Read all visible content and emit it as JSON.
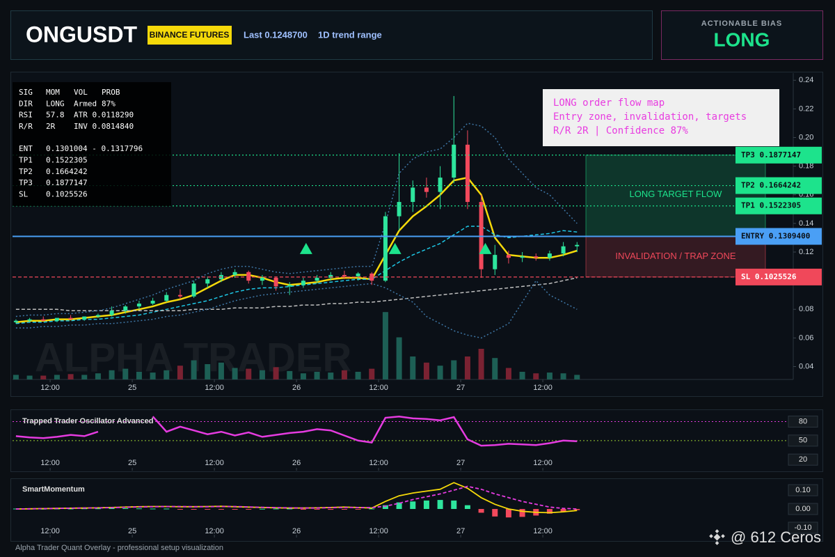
{
  "header": {
    "symbol": "ONGUSDT",
    "exchange": "BINANCE FUTURES",
    "last": "Last 0.1248700",
    "range": "1D trend range"
  },
  "bias": {
    "label": "ACTIONABLE BIAS",
    "value": "LONG"
  },
  "info": {
    "rows": [
      [
        "SIG",
        "MOM",
        "VOL",
        "PROB"
      ],
      [
        "DIR",
        "LONG",
        "Armed",
        "87%"
      ],
      [
        "RSI",
        "57.8",
        "ATR 0.0118290"
      ],
      [
        "R/R",
        "2R",
        "INV 0.0814840"
      ],
      [
        "ENT",
        "0.1301004 - 0.1317796"
      ],
      [
        "TP1",
        "0.1522305"
      ],
      [
        "TP2",
        "0.1664242"
      ],
      [
        "TP3",
        "0.1877147"
      ],
      [
        "SL",
        "0.1025526"
      ]
    ]
  },
  "callout": [
    "LONG order flow map",
    "Entry zone, invalidation, targets",
    "R/R 2R | Confidence 87%"
  ],
  "watermark": "ALPHA TRADER",
  "footer": "Alpha Trader Quant Overlay - professional setup visualization",
  "credit": "@ 612 Ceros",
  "chart_data": [
    {
      "type": "candlestick",
      "x": [
        1,
        3,
        5,
        7,
        9,
        11,
        13,
        15,
        17,
        19,
        21,
        23,
        25,
        27,
        29,
        31,
        33,
        35,
        37,
        39,
        41,
        43,
        45,
        47,
        49,
        51,
        53,
        55,
        57,
        59,
        61,
        63,
        65,
        67,
        69,
        71,
        73,
        75,
        77,
        79,
        81,
        83
      ],
      "open": [
        0.071,
        0.072,
        0.073,
        0.072,
        0.074,
        0.073,
        0.075,
        0.076,
        0.079,
        0.082,
        0.084,
        0.086,
        0.09,
        0.089,
        0.098,
        0.101,
        0.104,
        0.106,
        0.1,
        0.102,
        0.096,
        0.097,
        0.1,
        0.102,
        0.104,
        0.103,
        0.105,
        0.1,
        0.145,
        0.155,
        0.165,
        0.162,
        0.172,
        0.195,
        0.155,
        0.108,
        0.118,
        0.116,
        0.117,
        0.116,
        0.119,
        0.124
      ],
      "high": [
        0.073,
        0.074,
        0.075,
        0.074,
        0.076,
        0.075,
        0.077,
        0.082,
        0.083,
        0.086,
        0.088,
        0.092,
        0.094,
        0.1,
        0.103,
        0.106,
        0.108,
        0.107,
        0.104,
        0.103,
        0.099,
        0.102,
        0.104,
        0.106,
        0.107,
        0.106,
        0.106,
        0.148,
        0.189,
        0.17,
        0.172,
        0.18,
        0.229,
        0.205,
        0.16,
        0.125,
        0.121,
        0.12,
        0.119,
        0.121,
        0.127,
        0.127
      ],
      "low": [
        0.07,
        0.071,
        0.072,
        0.071,
        0.073,
        0.072,
        0.074,
        0.075,
        0.077,
        0.08,
        0.083,
        0.085,
        0.087,
        0.088,
        0.095,
        0.099,
        0.102,
        0.098,
        0.097,
        0.093,
        0.09,
        0.095,
        0.098,
        0.1,
        0.101,
        0.1,
        0.097,
        0.099,
        0.135,
        0.148,
        0.158,
        0.15,
        0.168,
        0.15,
        0.102,
        0.104,
        0.112,
        0.113,
        0.114,
        0.114,
        0.117,
        0.12
      ],
      "close": [
        0.072,
        0.073,
        0.072,
        0.074,
        0.073,
        0.075,
        0.076,
        0.079,
        0.082,
        0.084,
        0.086,
        0.09,
        0.089,
        0.098,
        0.101,
        0.104,
        0.106,
        0.1,
        0.102,
        0.096,
        0.097,
        0.1,
        0.102,
        0.104,
        0.103,
        0.105,
        0.1,
        0.145,
        0.155,
        0.165,
        0.162,
        0.172,
        0.195,
        0.155,
        0.108,
        0.118,
        0.116,
        0.117,
        0.116,
        0.119,
        0.124,
        0.125
      ],
      "volume": [
        6,
        5,
        5,
        6,
        7,
        6,
        8,
        12,
        14,
        10,
        9,
        12,
        18,
        25,
        20,
        22,
        15,
        14,
        12,
        16,
        11,
        8,
        10,
        9,
        12,
        10,
        14,
        88,
        55,
        30,
        22,
        18,
        25,
        30,
        40,
        28,
        15,
        10,
        8,
        9,
        8,
        6
      ],
      "volume_lim": [
        0,
        100
      ],
      "up_color": "#2ee59d",
      "down_color": "#f2495c",
      "volume_up_color": "#1d5f55",
      "volume_down_color": "#7a2232",
      "lines": [
        {
          "color": "#f5d90a",
          "style": "solid",
          "values": [
            0.071,
            0.072,
            0.072,
            0.073,
            0.073,
            0.074,
            0.075,
            0.076,
            0.078,
            0.08,
            0.082,
            0.085,
            0.087,
            0.09,
            0.095,
            0.1,
            0.104,
            0.104,
            0.102,
            0.099,
            0.097,
            0.098,
            0.099,
            0.101,
            0.102,
            0.102,
            0.101,
            0.118,
            0.135,
            0.145,
            0.152,
            0.16,
            0.17,
            0.172,
            0.16,
            0.13,
            0.118,
            0.117,
            0.116,
            0.116,
            0.118,
            0.121
          ]
        },
        {
          "color": "#1ec8e6",
          "style": "dashed",
          "values": [
            0.07,
            0.071,
            0.071,
            0.072,
            0.072,
            0.073,
            0.073,
            0.074,
            0.075,
            0.076,
            0.078,
            0.08,
            0.082,
            0.084,
            0.086,
            0.089,
            0.092,
            0.094,
            0.095,
            0.095,
            0.096,
            0.097,
            0.098,
            0.099,
            0.1,
            0.101,
            0.101,
            0.107,
            0.113,
            0.118,
            0.122,
            0.126,
            0.132,
            0.138,
            0.138,
            0.132,
            0.13,
            0.131,
            0.132,
            0.133,
            0.135,
            0.134
          ]
        },
        {
          "color": "#bfbfbf",
          "style": "dashed",
          "values": [
            0.08,
            0.08,
            0.08,
            0.08,
            0.079,
            0.079,
            0.079,
            0.079,
            0.079,
            0.079,
            0.079,
            0.079,
            0.079,
            0.08,
            0.08,
            0.08,
            0.081,
            0.081,
            0.081,
            0.082,
            0.082,
            0.083,
            0.083,
            0.084,
            0.084,
            0.085,
            0.085,
            0.086,
            0.087,
            0.088,
            0.089,
            0.09,
            0.091,
            0.092,
            0.093,
            0.094,
            0.095,
            0.096,
            0.097,
            0.098,
            0.1,
            0.102
          ]
        },
        {
          "color": "#3f78a8",
          "style": "dotted",
          "values": [
            0.075,
            0.076,
            0.076,
            0.077,
            0.077,
            0.078,
            0.079,
            0.081,
            0.084,
            0.087,
            0.09,
            0.094,
            0.097,
            0.1,
            0.105,
            0.108,
            0.11,
            0.11,
            0.108,
            0.106,
            0.105,
            0.106,
            0.107,
            0.108,
            0.109,
            0.11,
            0.11,
            0.14,
            0.175,
            0.185,
            0.19,
            0.192,
            0.2,
            0.21,
            0.208,
            0.2,
            0.185,
            0.175,
            0.165,
            0.16,
            0.15,
            0.14
          ]
        },
        {
          "color": "#3f78a8",
          "style": "dotted",
          "values": [
            0.067,
            0.067,
            0.068,
            0.068,
            0.069,
            0.069,
            0.07,
            0.07,
            0.071,
            0.072,
            0.073,
            0.075,
            0.076,
            0.078,
            0.08,
            0.083,
            0.086,
            0.088,
            0.09,
            0.091,
            0.092,
            0.093,
            0.094,
            0.095,
            0.096,
            0.097,
            0.098,
            0.095,
            0.09,
            0.085,
            0.075,
            0.07,
            0.065,
            0.062,
            0.06,
            0.065,
            0.07,
            0.085,
            0.1,
            0.09,
            0.085,
            0.08
          ]
        }
      ],
      "levels": [
        {
          "label": "TP3 0.1877147",
          "value": 0.1877147,
          "color": "#1de38c",
          "style": "dotted"
        },
        {
          "label": "TP2 0.1664242",
          "value": 0.1664242,
          "color": "#1de38c",
          "style": "dotted"
        },
        {
          "label": "TP1 0.1522305",
          "value": 0.1522305,
          "color": "#1de38c",
          "style": "dotted"
        },
        {
          "label": "ENTRY 0.1309400",
          "value": 0.13094,
          "color": "#4a9ff5",
          "style": "solid"
        },
        {
          "label": "SL 0.1025526",
          "value": 0.1025526,
          "color": "#f0485a",
          "style": "dashed"
        }
      ],
      "zones": [
        {
          "label": "LONG TARGET FLOW",
          "from": 0.13094,
          "to": 0.1877147,
          "color": "#1de38c"
        },
        {
          "label": "INVALIDATION / TRAP ZONE",
          "from": 0.1025526,
          "to": 0.13094,
          "color": "#f0485a"
        }
      ],
      "signals": {
        "x": [
          43.4,
          56.4,
          69.6
        ],
        "y": [
          0.122,
          0.122,
          0.122
        ],
        "color": "#1de38c"
      },
      "xlim": [
        0.5,
        114.6
      ],
      "ylim": [
        0.031,
        0.245
      ],
      "xticks": [
        {
          "value": 6,
          "label": "12:00"
        },
        {
          "value": 18,
          "label": "25"
        },
        {
          "value": 30,
          "label": "12:00"
        },
        {
          "value": 42,
          "label": "26"
        },
        {
          "value": 54,
          "label": "12:00"
        },
        {
          "value": 66,
          "label": "27"
        },
        {
          "value": 78,
          "label": "12:00"
        }
      ],
      "yticks": [
        0.04,
        0.06,
        0.08,
        {
          "value": 0.1,
          "label": "0.10"
        },
        0.12,
        0.14,
        0.16,
        0.18,
        {
          "value": 0.2,
          "label": "0.20"
        },
        0.22,
        0.24
      ]
    },
    {
      "type": "line",
      "title": "Trapped Trader Oscillator Advanced",
      "color": "#e53be0",
      "x": [
        1,
        3,
        5,
        7,
        9,
        11,
        13,
        15,
        17,
        19,
        21,
        23,
        25,
        27,
        29,
        31,
        33,
        35,
        37,
        39,
        41,
        43,
        45,
        47,
        49,
        51,
        53,
        55,
        57,
        59,
        61,
        63,
        65,
        67,
        69,
        71,
        73,
        75,
        77,
        79,
        81,
        83
      ],
      "values": [
        57,
        55,
        54,
        56,
        59,
        57,
        64,
        null,
        null,
        null,
        88,
        64,
        72,
        66,
        60,
        64,
        58,
        63,
        56,
        59,
        62,
        64,
        68,
        66,
        58,
        50,
        47,
        86,
        88,
        85,
        84,
        82,
        87,
        52,
        42,
        43,
        45,
        44,
        43,
        46,
        50,
        49
      ],
      "levels": [
        {
          "value": 80,
          "color": "#e53be0"
        },
        {
          "value": 50,
          "color": "#9acd32"
        }
      ],
      "xlim": [
        0.5,
        114.6
      ],
      "ylim": [
        7,
        97
      ],
      "yticks": [
        20,
        50,
        80
      ]
    },
    {
      "type": "bar",
      "title": "SmartMomentum",
      "up_color": "#2ee59d",
      "down_color": "#f2495c",
      "x": [
        1,
        3,
        5,
        7,
        9,
        11,
        13,
        15,
        17,
        19,
        21,
        23,
        25,
        27,
        29,
        31,
        33,
        35,
        37,
        39,
        41,
        43,
        45,
        47,
        49,
        51,
        53,
        55,
        57,
        59,
        61,
        63,
        65,
        67,
        69,
        71,
        73,
        75,
        77,
        79,
        81,
        83
      ],
      "values": [
        0.002,
        0.002,
        0.001,
        0.002,
        0.002,
        0.003,
        0.003,
        0.004,
        0.004,
        0.003,
        0.002,
        0.002,
        -0.002,
        -0.003,
        -0.003,
        -0.002,
        -0.002,
        -0.001,
        0.001,
        0.002,
        0.002,
        -0.002,
        -0.003,
        -0.004,
        -0.003,
        -0.002,
        0.002,
        0.02,
        0.035,
        0.04,
        0.045,
        0.048,
        0.045,
        0.02,
        -0.02,
        -0.04,
        -0.045,
        -0.042,
        -0.035,
        -0.025,
        -0.015,
        -0.006
      ],
      "lines": [
        {
          "color": "#f5d90a",
          "style": "solid",
          "values": [
            0.0,
            0.001,
            0.002,
            0.003,
            0.004,
            0.005,
            0.006,
            0.008,
            0.01,
            0.012,
            0.013,
            0.013,
            0.012,
            0.012,
            0.013,
            0.014,
            0.012,
            0.01,
            0.008,
            0.006,
            0.005,
            0.005,
            0.006,
            0.008,
            0.01,
            0.008,
            0.005,
            0.04,
            0.07,
            0.085,
            0.095,
            0.105,
            0.14,
            0.11,
            0.06,
            0.025,
            0.0,
            -0.012,
            -0.018,
            -0.02,
            -0.015,
            -0.008
          ]
        },
        {
          "color": "#e53be0",
          "style": "dashed",
          "values": [
            0.0,
            0.001,
            0.002,
            0.003,
            0.004,
            0.005,
            0.006,
            0.007,
            0.009,
            0.011,
            0.012,
            0.013,
            0.013,
            0.012,
            0.012,
            0.013,
            0.013,
            0.011,
            0.009,
            0.007,
            0.006,
            0.005,
            0.005,
            0.007,
            0.008,
            0.008,
            0.007,
            0.015,
            0.03,
            0.05,
            0.065,
            0.08,
            0.1,
            0.12,
            0.105,
            0.08,
            0.06,
            0.04,
            0.025,
            0.01,
            0.003,
            0.0
          ]
        }
      ],
      "xlim": [
        0.5,
        114.6
      ],
      "ylim": [
        -0.137,
        0.152
      ],
      "yticks": [
        {
          "value": 0.1,
          "label": "0.10"
        },
        {
          "value": 0,
          "label": "0.00"
        },
        {
          "value": -0.1,
          "label": "-0.10"
        }
      ]
    }
  ]
}
